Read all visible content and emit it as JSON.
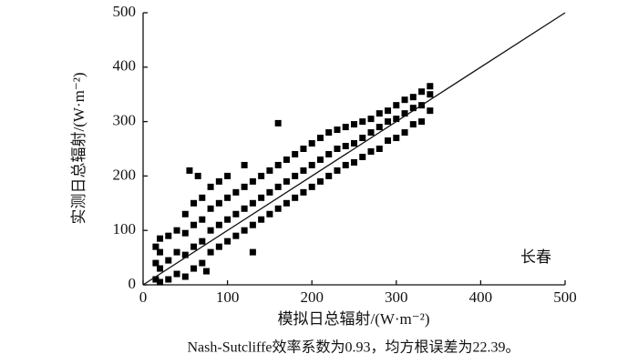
{
  "chart_data": {
    "type": "scatter",
    "xlabel": "模拟日总辐射/(W·m⁻²)",
    "ylabel": "实测日总辐射/(W·m⁻²)",
    "annotation": "长春",
    "caption": "Nash-Sutcliffe效率系数为0.93，均方根误差为22.39。",
    "xlim": [
      0,
      500
    ],
    "ylim": [
      0,
      500
    ],
    "xticks": [
      0,
      100,
      200,
      300,
      400,
      500
    ],
    "yticks": [
      0,
      100,
      200,
      300,
      400,
      500
    ],
    "color": "#000000",
    "reference_line": {
      "x": [
        0,
        500
      ],
      "y": [
        0,
        500
      ]
    },
    "x": [
      15,
      15,
      15,
      20,
      20,
      20,
      20,
      30,
      30,
      30,
      40,
      40,
      40,
      50,
      50,
      50,
      50,
      55,
      60,
      60,
      60,
      60,
      65,
      70,
      70,
      70,
      70,
      75,
      80,
      80,
      80,
      80,
      90,
      90,
      90,
      90,
      100,
      100,
      100,
      100,
      110,
      110,
      110,
      120,
      120,
      120,
      120,
      130,
      130,
      130,
      130,
      140,
      140,
      140,
      150,
      150,
      150,
      160,
      160,
      160,
      160,
      170,
      170,
      170,
      180,
      180,
      180,
      190,
      190,
      190,
      200,
      200,
      200,
      210,
      210,
      210,
      220,
      220,
      220,
      230,
      230,
      230,
      240,
      240,
      240,
      250,
      250,
      250,
      260,
      260,
      260,
      270,
      270,
      270,
      280,
      280,
      280,
      290,
      290,
      290,
      300,
      300,
      300,
      310,
      310,
      310,
      320,
      320,
      320,
      330,
      330,
      330,
      340,
      340,
      340
    ],
    "y": [
      10,
      40,
      70,
      5,
      30,
      60,
      85,
      10,
      45,
      90,
      20,
      60,
      100,
      15,
      55,
      95,
      130,
      210,
      30,
      70,
      110,
      150,
      200,
      40,
      80,
      120,
      160,
      25,
      60,
      100,
      140,
      180,
      70,
      110,
      150,
      190,
      80,
      120,
      160,
      200,
      90,
      130,
      170,
      100,
      140,
      180,
      220,
      110,
      150,
      190,
      60,
      120,
      160,
      200,
      130,
      170,
      210,
      140,
      180,
      220,
      297,
      150,
      190,
      230,
      160,
      200,
      240,
      170,
      210,
      250,
      180,
      220,
      260,
      190,
      230,
      270,
      200,
      240,
      280,
      210,
      250,
      285,
      220,
      255,
      290,
      225,
      260,
      295,
      235,
      270,
      300,
      245,
      280,
      305,
      250,
      290,
      315,
      265,
      300,
      320,
      270,
      305,
      330,
      280,
      315,
      340,
      295,
      325,
      345,
      300,
      330,
      355,
      320,
      350,
      365
    ]
  }
}
